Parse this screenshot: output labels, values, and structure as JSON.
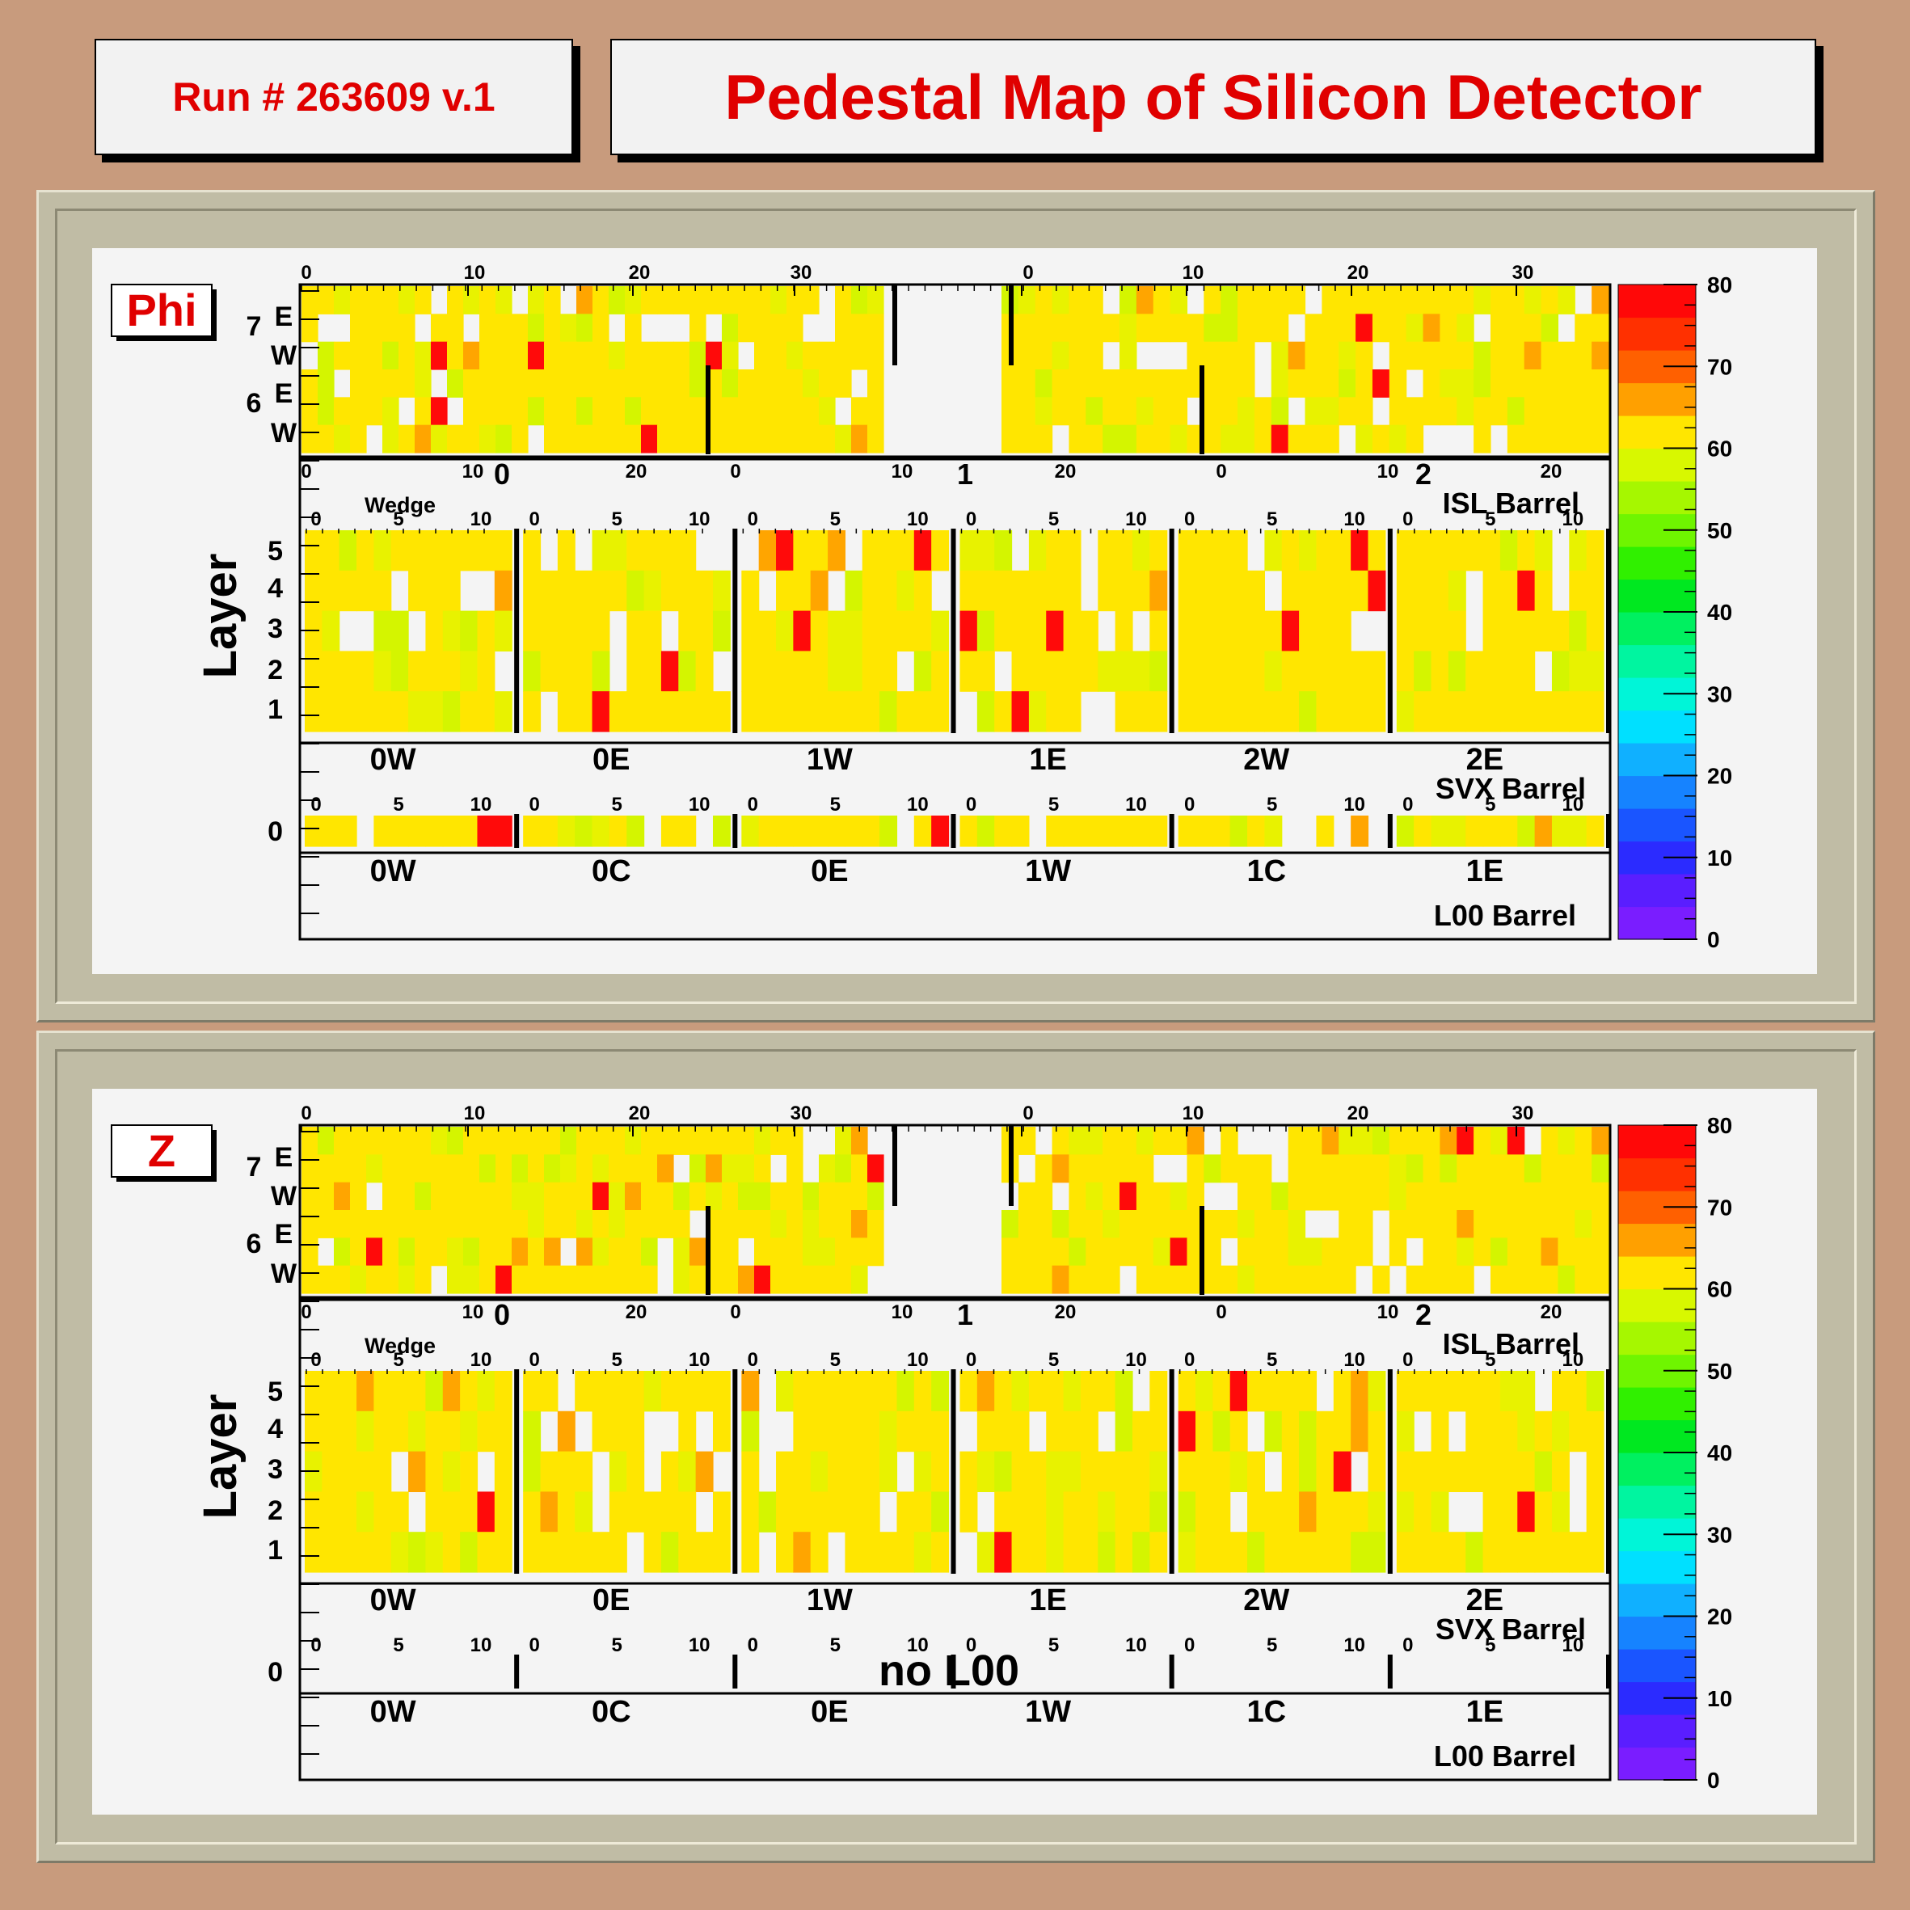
{
  "header": {
    "run_label": "Run # 263609 v.1",
    "title": "Pedestal Map of Silicon Detector"
  },
  "chart_data": {
    "type": "heatmap",
    "colors": {
      "cell_main": "#ffe600",
      "cell_light": "#e8f200",
      "cell_lime": "#d4f500",
      "cell_orange": "#ffa500",
      "cell_red": "#ff0a0a",
      "empty": "#f4f4f4"
    },
    "color_scale": {
      "ticks": [
        "0",
        "10",
        "20",
        "30",
        "40",
        "50",
        "60",
        "70",
        "80"
      ],
      "range": [
        0,
        80
      ],
      "colors": [
        "#7a1dff",
        "#5a1eff",
        "#2b2bff",
        "#1a55ff",
        "#1683ff",
        "#10b0ff",
        "#00e0ff",
        "#00f5d8",
        "#00f5a0",
        "#00f060",
        "#00e820",
        "#30f000",
        "#6ff500",
        "#a6f700",
        "#d8f800",
        "#ffe600",
        "#ffa000",
        "#ff6000",
        "#ff3000",
        "#ff0808"
      ]
    },
    "panels": [
      {
        "label": "Phi",
        "layer_axis_title": "Layer",
        "isl": {
          "top_ticks": [
            "0",
            "10",
            "20",
            "30",
            "0",
            "10",
            "20",
            "30"
          ],
          "bottom_ticks": [
            "0",
            "10",
            "20",
            "0",
            "10",
            "20",
            "0",
            "10",
            "20"
          ],
          "barrel_numbers": [
            "0",
            "1",
            "2"
          ],
          "row_labels": [
            "7",
            "E",
            "W",
            "6",
            "E",
            "W"
          ],
          "title": "ISL Barrel"
        },
        "svx": {
          "wedge_label": "Wedge",
          "wedge_ticks": [
            "0",
            "5",
            "10"
          ],
          "layer_labels": [
            "5",
            "4",
            "3",
            "2",
            "1"
          ],
          "sections": [
            "0W",
            "0E",
            "1W",
            "1E",
            "2W",
            "2E"
          ],
          "title": "SVX Barrel"
        },
        "l00": {
          "layer_label": "0",
          "wedge_ticks": [
            "0",
            "5",
            "10"
          ],
          "sections": [
            "0W",
            "0C",
            "0E",
            "1W",
            "1C",
            "1E"
          ],
          "title": "L00 Barrel",
          "note": ""
        }
      },
      {
        "label": "Z",
        "layer_axis_title": "Layer",
        "isl": {
          "top_ticks": [
            "0",
            "10",
            "20",
            "30",
            "0",
            "10",
            "20",
            "30"
          ],
          "bottom_ticks": [
            "0",
            "10",
            "20",
            "0",
            "10",
            "20",
            "0",
            "10",
            "20"
          ],
          "barrel_numbers": [
            "0",
            "1",
            "2"
          ],
          "row_labels": [
            "7",
            "E",
            "W",
            "6",
            "E",
            "W"
          ],
          "title": "ISL Barrel"
        },
        "svx": {
          "wedge_label": "Wedge",
          "wedge_ticks": [
            "0",
            "5",
            "10"
          ],
          "layer_labels": [
            "5",
            "4",
            "3",
            "2",
            "1"
          ],
          "sections": [
            "0W",
            "0E",
            "1W",
            "1E",
            "2W",
            "2E"
          ],
          "title": "SVX Barrel"
        },
        "l00": {
          "layer_label": "0",
          "wedge_ticks": [
            "0",
            "5",
            "10"
          ],
          "sections": [
            "0W",
            "0C",
            "0E",
            "1W",
            "1C",
            "1E"
          ],
          "title": "L00 Barrel",
          "note": "no L00"
        }
      }
    ]
  }
}
